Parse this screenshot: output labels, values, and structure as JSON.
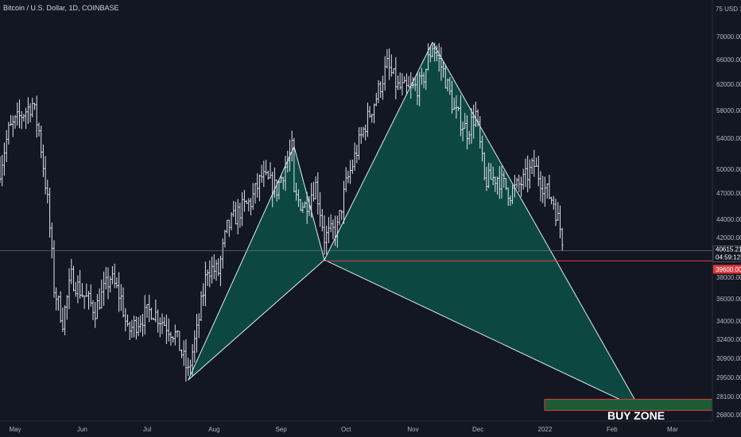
{
  "header": {
    "symbol_title": "Bitcoin / U.S. Dollar, 1D, COINBASE",
    "currency_label": "75 USD 30"
  },
  "price_tags": {
    "last_price": "40615.21",
    "countdown": "04:59:12",
    "level_price": "39600.00"
  },
  "annotations": {
    "buy_zone_label": "BUY ZONE"
  },
  "colors": {
    "background": "#131722",
    "candle": "#e0e3eb",
    "pattern_fill": "#0d4a45",
    "pattern_edge": "#d8f0ec",
    "level_line": "#e03a3e",
    "buy_zone_fill": "#1f5a36",
    "buy_zone_edge": "#e03a3e",
    "price_tag_level": "#e03a3e",
    "price_tag_last": "#131722"
  },
  "chart_data": {
    "type": "ohlc",
    "title": "Bitcoin / U.S. Dollar, 1D, COINBASE",
    "x_tick_labels": [
      "May",
      "Jun",
      "Jul",
      "Aug",
      "Sep",
      "Oct",
      "Nov",
      "Dec",
      "2022",
      "Feb",
      "Mar"
    ],
    "y_tick_labels": [
      "70000.00",
      "66000.00",
      "62000.00",
      "58000.00",
      "54000.00",
      "50000.00",
      "47000.00",
      "44000.00",
      "42000.00",
      "38000.00",
      "36000.00",
      "34000.00",
      "32400.00",
      "30900.00",
      "29500.00",
      "28100.00",
      "26800.00"
    ],
    "y_scale": "log",
    "ylim": [
      26000,
      75000
    ],
    "price_path": [
      [
        "2021-04-24",
        50000
      ],
      [
        "2021-04-28",
        55000
      ],
      [
        "2021-05-03",
        57000
      ],
      [
        "2021-05-09",
        59000
      ],
      [
        "2021-05-12",
        55000
      ],
      [
        "2021-05-16",
        46000
      ],
      [
        "2021-05-19",
        37000
      ],
      [
        "2021-05-23",
        34000
      ],
      [
        "2021-05-27",
        38000
      ],
      [
        "2021-06-01",
        36500
      ],
      [
        "2021-06-07",
        35000
      ],
      [
        "2021-06-14",
        38000
      ],
      [
        "2021-06-19",
        36000
      ],
      [
        "2021-06-22",
        33000
      ],
      [
        "2021-06-27",
        34000
      ],
      [
        "2021-07-03",
        35000
      ],
      [
        "2021-07-08",
        34000
      ],
      [
        "2021-07-14",
        32800
      ],
      [
        "2021-07-20",
        29800
      ],
      [
        "2021-07-24",
        33000
      ],
      [
        "2021-07-29",
        39000
      ],
      [
        "2021-08-03",
        38500
      ],
      [
        "2021-08-07",
        43000
      ],
      [
        "2021-08-13",
        45000
      ],
      [
        "2021-08-18",
        46000
      ],
      [
        "2021-08-23",
        49000
      ],
      [
        "2021-08-30",
        47500
      ],
      [
        "2021-09-06",
        52500
      ],
      [
        "2021-09-07",
        46500
      ],
      [
        "2021-09-12",
        45500
      ],
      [
        "2021-09-17",
        48000
      ],
      [
        "2021-09-21",
        42000
      ],
      [
        "2021-09-27",
        43000
      ],
      [
        "2021-10-01",
        48000
      ],
      [
        "2021-10-05",
        51500
      ],
      [
        "2021-10-10",
        56000
      ],
      [
        "2021-10-15",
        60000
      ],
      [
        "2021-10-20",
        65000
      ],
      [
        "2021-10-25",
        61500
      ],
      [
        "2021-10-30",
        61000
      ],
      [
        "2021-11-05",
        62000
      ],
      [
        "2021-11-10",
        68500
      ],
      [
        "2021-11-15",
        64000
      ],
      [
        "2021-11-20",
        58000
      ],
      [
        "2021-11-26",
        55000
      ],
      [
        "2021-11-30",
        57500
      ],
      [
        "2021-12-04",
        48500
      ],
      [
        "2021-12-10",
        49000
      ],
      [
        "2021-12-16",
        47000
      ],
      [
        "2021-12-22",
        48500
      ],
      [
        "2021-12-27",
        50500
      ],
      [
        "2022-01-01",
        47500
      ],
      [
        "2022-01-05",
        46000
      ],
      [
        "2022-01-09",
        42000
      ],
      [
        "2022-01-10",
        40615
      ]
    ],
    "harmonic_pattern": [
      [
        "2021-07-20",
        29300
      ],
      [
        "2021-09-07",
        52900
      ],
      [
        "2021-09-21",
        39700
      ],
      [
        "2021-11-10",
        69000
      ],
      [
        "2022-02-14",
        27200
      ]
    ],
    "horizontal_levels": [
      {
        "label": "40615.21",
        "value": 40615.21
      },
      {
        "label": "39600.00",
        "value": 39600
      }
    ],
    "buy_zone": {
      "label": "BUY ZONE",
      "low": 27100,
      "high": 27900
    }
  }
}
